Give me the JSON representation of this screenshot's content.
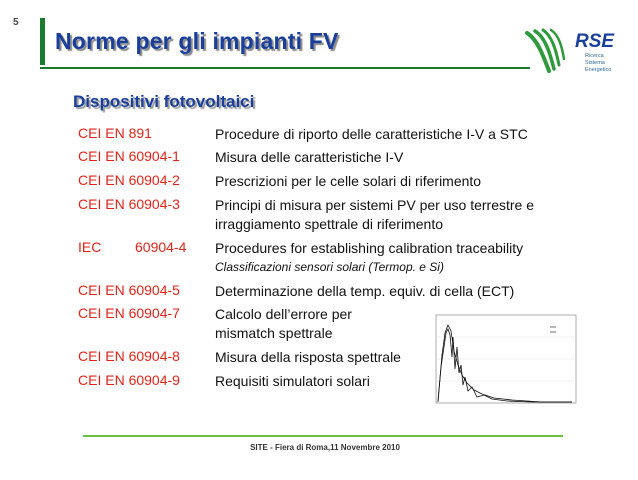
{
  "slide": {
    "page_number": "5",
    "title": "Norme per gli impianti FV",
    "section_title": "Dispositivi fotovoltaici",
    "footer": "SITE - Fiera di Roma,11 Novembre 2010"
  },
  "logo": {
    "text": "RSE",
    "subtext_lines": [
      "Ricerca",
      "Sistema",
      "Energetico"
    ],
    "colors": {
      "green": "#2f9a3c",
      "blue": "#1a3e9c"
    }
  },
  "standards": [
    {
      "code": "CEI EN 891",
      "desc": "Procedure di riporto delle caratteristiche I-V a STC"
    },
    {
      "code": "CEI EN 60904-1",
      "desc": "Misura delle caratteristiche I-V"
    },
    {
      "code": "CEI EN 60904-2",
      "desc": "Prescrizioni per le celle solari di riferimento"
    },
    {
      "code": "CEI EN 60904-3",
      "desc": "Principi di misura per sistemi PV per uso terrestre e",
      "desc2": "irraggiamento spettrale di riferimento"
    },
    {
      "code_prefix": "IEC",
      "code_num": "60904-4",
      "desc": "Procedures for establishing calibration traceability",
      "sub": "Classificazioni sensori solari (Termop. e Si)"
    },
    {
      "code": "CEI EN 60904-5",
      "desc": "Determinazione della temp. equiv. di cella (ECT)"
    },
    {
      "code": "CEI EN 60904-7",
      "desc": "Calcolo dell’errore per",
      "desc2": "mismatch spettrale"
    },
    {
      "code": "CEI EN 60904-8",
      "desc": "Misura della risposta spettrale"
    },
    {
      "code": "CEI EN 60904-9",
      "desc": "Requisiti simulatori solari"
    }
  ],
  "colors": {
    "title_blue": "#1a3e9c",
    "code_red": "#e2231a",
    "rule_green": "#1a7a2e",
    "footer_green": "#6fbf3f"
  }
}
